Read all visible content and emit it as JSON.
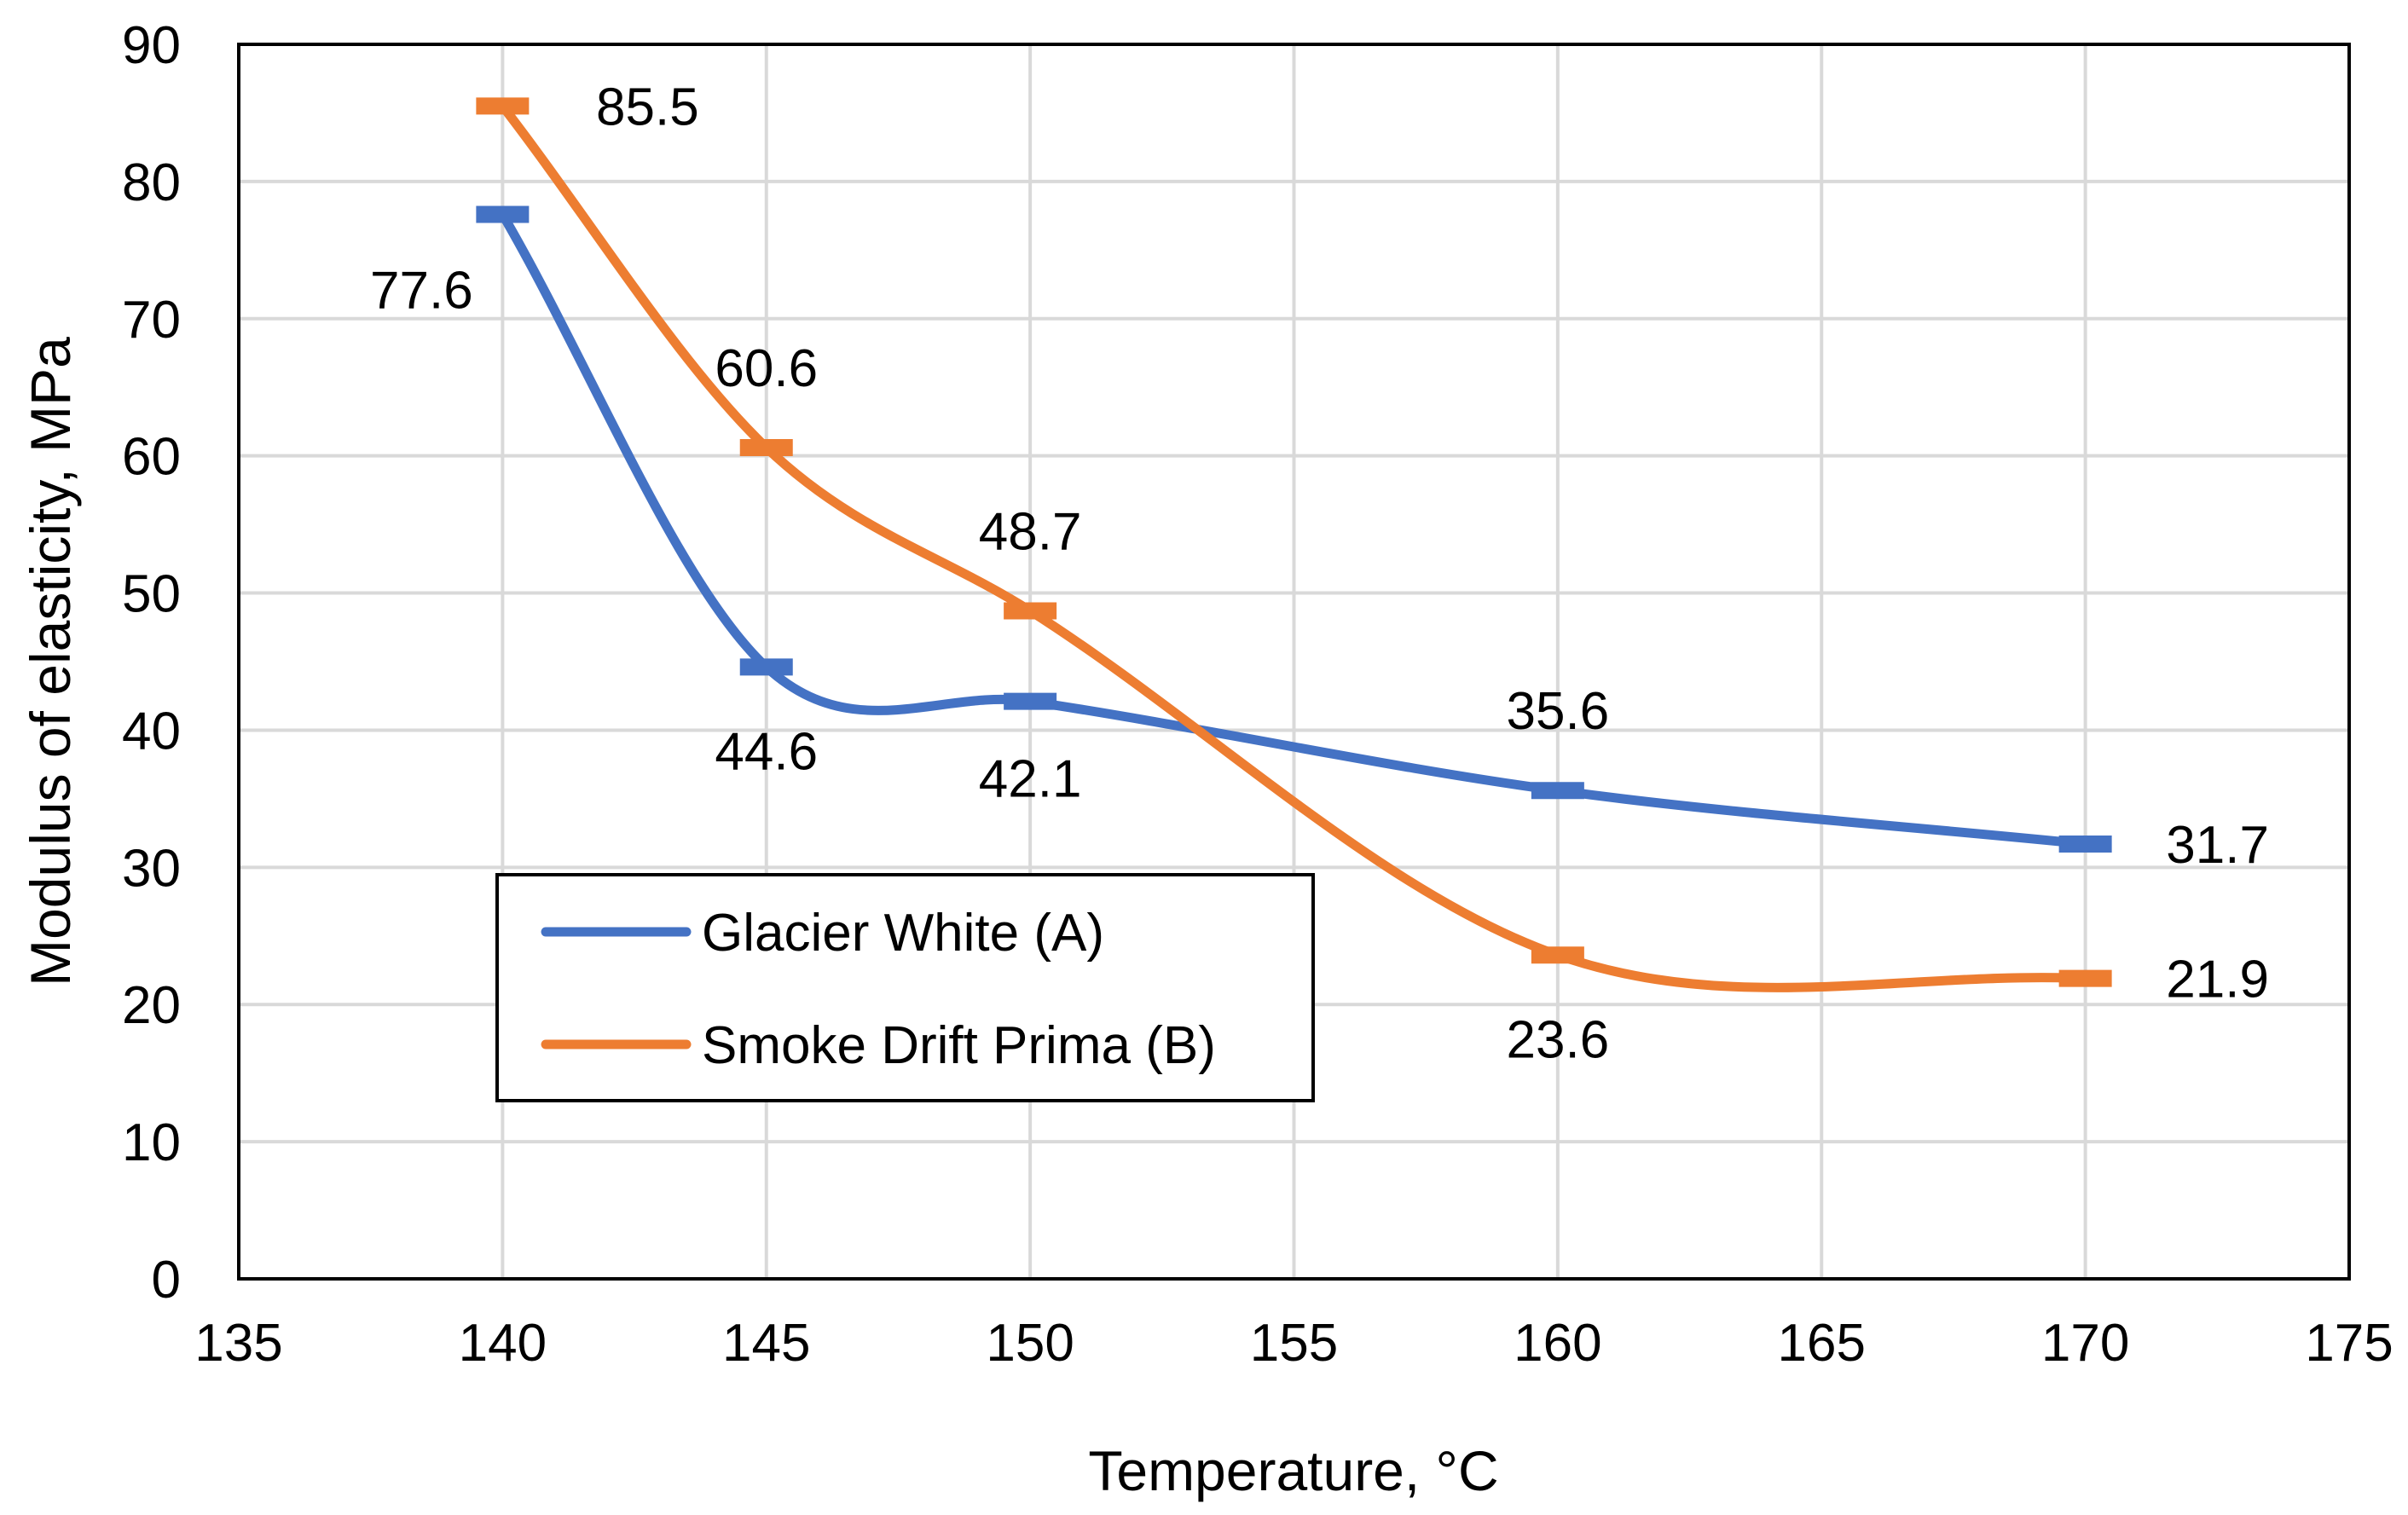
{
  "chart_data": {
    "type": "line",
    "title": "",
    "xlabel": "Temperature, °C",
    "ylabel": "Modulus of elasticity, MPa",
    "xlim": [
      135,
      175
    ],
    "ylim": [
      0,
      90
    ],
    "x_ticks": [
      "135",
      "140",
      "145",
      "150",
      "155",
      "160",
      "165",
      "170",
      "175"
    ],
    "y_ticks": [
      "0",
      "10",
      "20",
      "30",
      "40",
      "50",
      "60",
      "70",
      "80",
      "90"
    ],
    "grid": true,
    "legend_position": "bottom-left",
    "series": [
      {
        "name": "Glacier White (A)",
        "color": "#4472C4",
        "x": [
          140,
          145,
          150,
          160,
          170
        ],
        "values": [
          77.6,
          44.6,
          42.1,
          35.6,
          31.7
        ],
        "labels": [
          "77.6",
          "44.6",
          "42.1",
          "35.6",
          "31.7"
        ]
      },
      {
        "name": "Smoke Drift Prima (B)",
        "color": "#ED7D31",
        "x": [
          140,
          145,
          150,
          160,
          170
        ],
        "values": [
          85.5,
          60.6,
          48.7,
          23.6,
          21.9
        ],
        "labels": [
          "85.5",
          "60.6",
          "48.7",
          "23.6",
          "21.9"
        ]
      }
    ]
  }
}
